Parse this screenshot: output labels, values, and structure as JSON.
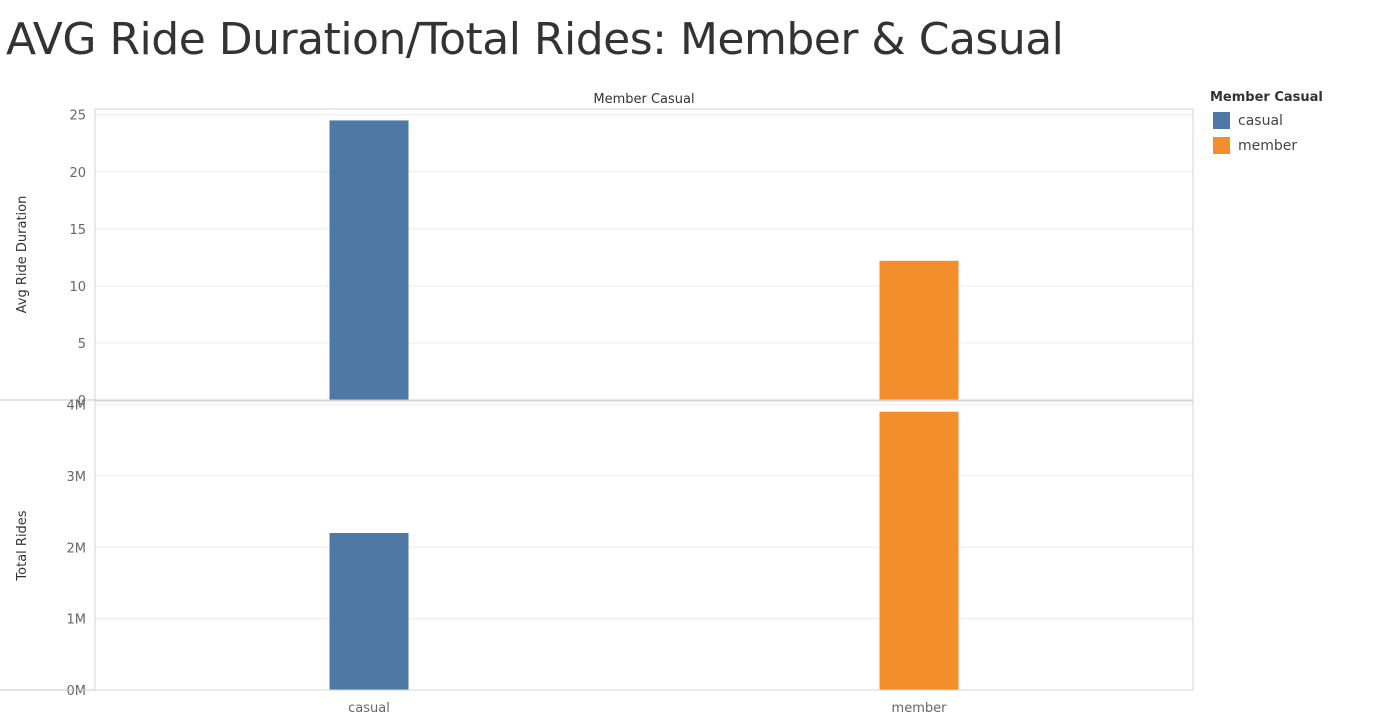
{
  "title": "AVG Ride Duration/Total Rides: Member & Casual",
  "legend": {
    "title": "Member Casual",
    "items": [
      {
        "label": "casual",
        "color": "#4e79a7"
      },
      {
        "label": "member",
        "color": "#f28e2b"
      }
    ]
  },
  "chart_data": {
    "type": "bar",
    "header": "Member Casual",
    "categories": [
      "casual",
      "member"
    ],
    "colors": [
      "#4e79a7",
      "#f28e2b"
    ],
    "panels": [
      {
        "ylabel": "Avg Ride Duration",
        "values": [
          24.5,
          12.2
        ],
        "ylim": [
          0,
          25.5
        ],
        "ticks": [
          0,
          5,
          10,
          15,
          20,
          25
        ],
        "tick_labels": [
          "0",
          "5",
          "10",
          "15",
          "20",
          "25"
        ]
      },
      {
        "ylabel": "Total Rides",
        "values": [
          2200000,
          3900000
        ],
        "ylim": [
          0,
          4050000
        ],
        "ticks": [
          0,
          1000000,
          2000000,
          3000000,
          4000000
        ],
        "tick_labels": [
          "0M",
          "1M",
          "2M",
          "3M",
          "4M"
        ]
      }
    ],
    "grid": true,
    "legend_position": "right"
  }
}
